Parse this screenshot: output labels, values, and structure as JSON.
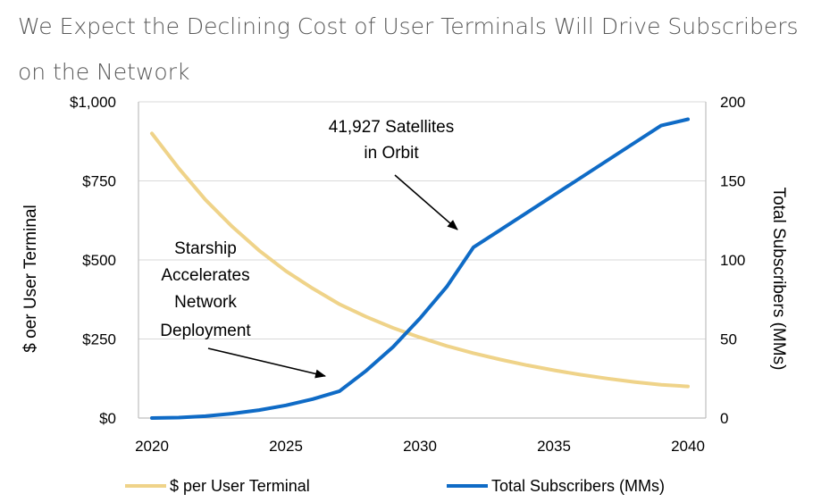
{
  "title_line1": "We Expect the Declining Cost of User Terminals Will Drive Subscribers",
  "title_line2": "on the Network",
  "chart_data": {
    "type": "line",
    "x": [
      2020,
      2021,
      2022,
      2023,
      2024,
      2025,
      2026,
      2027,
      2028,
      2029,
      2030,
      2031,
      2032,
      2033,
      2034,
      2035,
      2036,
      2037,
      2038,
      2039,
      2040
    ],
    "series": [
      {
        "name": "$ per User Terminal",
        "axis": "left",
        "color": "#EFD389",
        "values": [
          900,
          790,
          690,
          605,
          530,
          465,
          410,
          360,
          320,
          285,
          255,
          228,
          205,
          185,
          167,
          151,
          137,
          125,
          114,
          105,
          100
        ]
      },
      {
        "name": "Total Subscribers (MMs)",
        "axis": "right",
        "color": "#0F6BC6",
        "values": [
          0,
          0.3,
          1.2,
          2.8,
          5,
          8,
          12,
          17,
          30,
          45,
          63,
          83,
          108,
          119,
          130,
          141,
          152,
          163,
          174,
          185,
          189
        ]
      }
    ],
    "xlabel": "",
    "ylabel_left": "$ oer User Terminal",
    "ylabel_right": "Total Subscribers (MMs)",
    "ylim_left": [
      0,
      1000
    ],
    "ylim_right": [
      0,
      200
    ],
    "xlim": [
      2020,
      2040
    ],
    "xticks": [
      "2020",
      "2025",
      "2030",
      "2035",
      "2040"
    ],
    "yticks_left": [
      "$0",
      "$250",
      "$500",
      "$750",
      "$1,000"
    ],
    "yticks_right": [
      "0",
      "50",
      "100",
      "150",
      "200"
    ],
    "grid": true,
    "legend_position": "bottom",
    "annotations": [
      {
        "lines": [
          "41,927 Satellites",
          "in Orbit"
        ],
        "points_to_x": 2031.5
      },
      {
        "lines": [
          "Starship",
          "Accelerates",
          "Network",
          "Deployment"
        ],
        "points_to_x": 2026.8
      }
    ]
  }
}
